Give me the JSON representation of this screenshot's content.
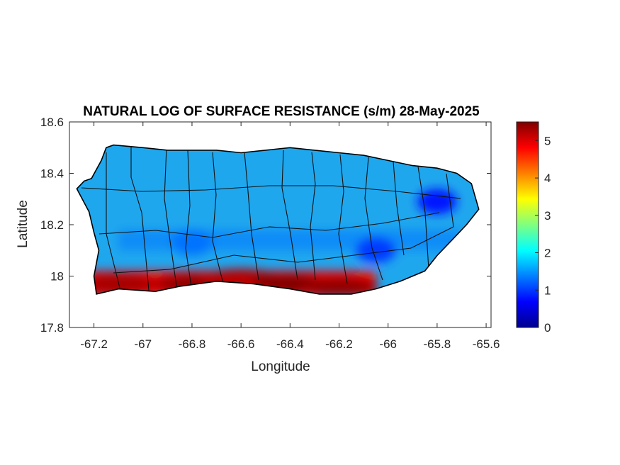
{
  "chart_data": {
    "type": "heatmap",
    "title": "NATURAL LOG OF SURFACE RESISTANCE (s/m) 28-May-2025",
    "xlabel": "Longitude",
    "ylabel": "Latitude",
    "xlim": [
      -67.3,
      -65.58
    ],
    "ylim": [
      17.8,
      18.6
    ],
    "x_ticks": [
      -67.2,
      -67,
      -66.8,
      -66.6,
      -66.4,
      -66.2,
      -66,
      -65.8,
      -65.6
    ],
    "x_tick_labels": [
      "-67.2",
      "-67",
      "-66.8",
      "-66.6",
      "-66.4",
      "-66.2",
      "-66",
      "-65.8",
      "-65.6"
    ],
    "y_ticks": [
      17.8,
      18,
      18.2,
      18.4,
      18.6
    ],
    "y_tick_labels": [
      "17.8",
      "18",
      "18.2",
      "18.4",
      "18.6"
    ],
    "colorbar": {
      "colormap": "jet",
      "range": [
        0,
        5.5
      ],
      "ticks": [
        0,
        1,
        2,
        3,
        4,
        5
      ],
      "tick_labels": [
        "0",
        "1",
        "2",
        "3",
        "4",
        "5"
      ]
    },
    "island_outline": [
      [
        -67.24,
        18.37
      ],
      [
        -67.21,
        18.38
      ],
      [
        -67.17,
        18.45
      ],
      [
        -67.15,
        18.5
      ],
      [
        -67.12,
        18.51
      ],
      [
        -67.0,
        18.5
      ],
      [
        -66.9,
        18.49
      ],
      [
        -66.8,
        18.49
      ],
      [
        -66.7,
        18.49
      ],
      [
        -66.6,
        18.48
      ],
      [
        -66.5,
        18.49
      ],
      [
        -66.4,
        18.5
      ],
      [
        -66.3,
        18.49
      ],
      [
        -66.2,
        18.48
      ],
      [
        -66.1,
        18.47
      ],
      [
        -66.0,
        18.45
      ],
      [
        -65.9,
        18.43
      ],
      [
        -65.8,
        18.42
      ],
      [
        -65.72,
        18.4
      ],
      [
        -65.66,
        18.36
      ],
      [
        -65.63,
        18.26
      ],
      [
        -65.68,
        18.2
      ],
      [
        -65.74,
        18.14
      ],
      [
        -65.8,
        18.08
      ],
      [
        -65.85,
        18.02
      ],
      [
        -65.95,
        17.98
      ],
      [
        -66.05,
        17.95
      ],
      [
        -66.15,
        17.93
      ],
      [
        -66.28,
        17.93
      ],
      [
        -66.4,
        17.95
      ],
      [
        -66.55,
        17.97
      ],
      [
        -66.7,
        17.98
      ],
      [
        -66.85,
        17.96
      ],
      [
        -66.95,
        17.94
      ],
      [
        -67.1,
        17.95
      ],
      [
        -67.19,
        17.93
      ],
      [
        -67.2,
        18.0
      ],
      [
        -67.18,
        18.1
      ],
      [
        -67.2,
        18.17
      ],
      [
        -67.22,
        18.25
      ],
      [
        -67.27,
        18.34
      ]
    ],
    "field_features": [
      {
        "type": "high",
        "lon": -67.1,
        "lat": 17.97,
        "value": 5.3
      },
      {
        "type": "high",
        "lon": -66.8,
        "lat": 17.97,
        "value": 5.4
      },
      {
        "type": "high",
        "lon": -66.6,
        "lat": 17.99,
        "value": 5.2
      },
      {
        "type": "high",
        "lon": -66.4,
        "lat": 17.97,
        "value": 5.5
      },
      {
        "type": "high",
        "lon": -66.2,
        "lat": 17.96,
        "value": 5.4
      },
      {
        "type": "low",
        "lon": -66.05,
        "lat": 18.1,
        "value": 1.0
      },
      {
        "type": "low",
        "lon": -65.8,
        "lat": 18.29,
        "value": 0.8
      },
      {
        "type": "low",
        "lon": -66.8,
        "lat": 18.13,
        "value": 1.3
      }
    ]
  }
}
